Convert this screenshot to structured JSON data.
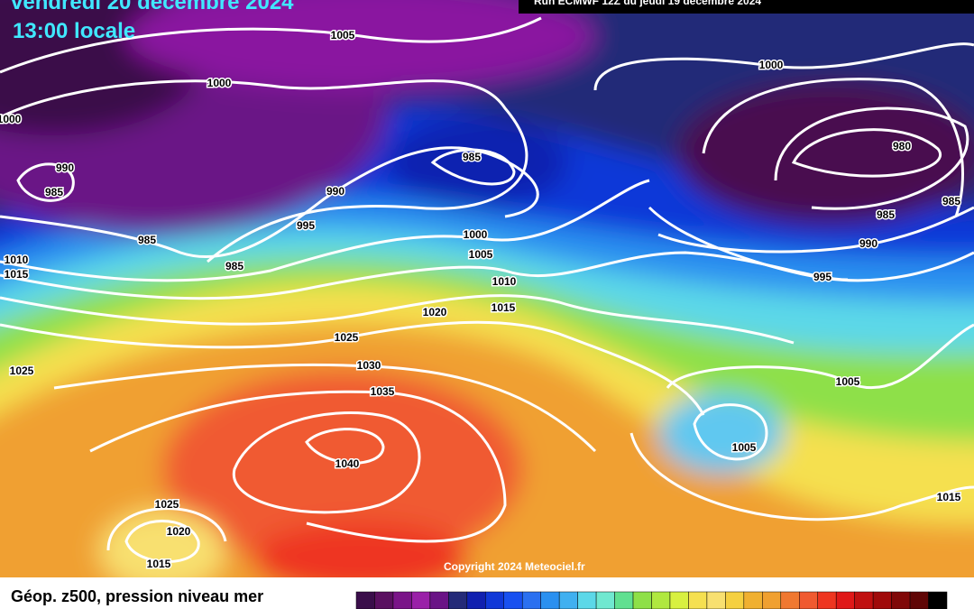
{
  "header": {
    "date": "vendredi 20 décembre 2024",
    "time": "13:00 locale",
    "run": "Run ECMWF 12Z du jeudi 19 décembre 2024"
  },
  "map": {
    "isobar_labels": [
      1005,
      1000,
      1000,
      990,
      985,
      985,
      985,
      995,
      990,
      985,
      1000,
      980,
      985,
      985,
      990,
      995,
      1000,
      1005,
      1010,
      1015,
      1020,
      1025,
      1030,
      1035,
      1040,
      1010,
      1015,
      1025,
      1005,
      1005,
      1015,
      1025,
      1020,
      1015
    ],
    "copyright": "Copyright 2024 Meteociel.fr"
  },
  "footer": {
    "legend_title": "Géop. z500, pression niveau mer"
  }
}
